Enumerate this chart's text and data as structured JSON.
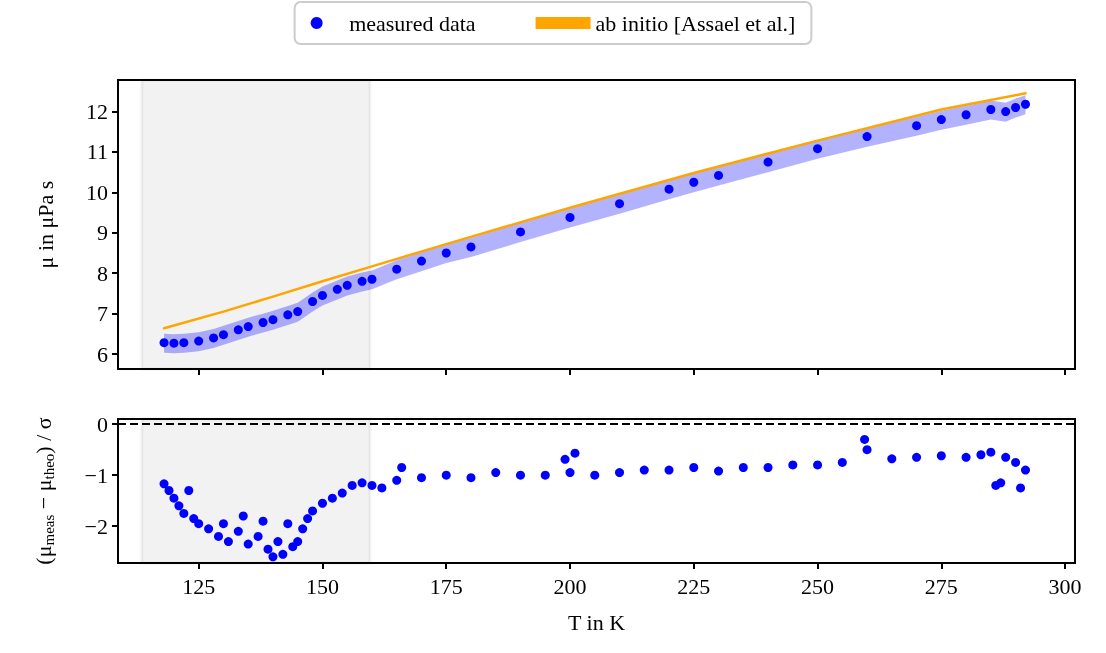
{
  "chart_data": [
    {
      "type": "scatter",
      "ylabel": "μ in μPa s",
      "xlim": [
        108.7,
        302
      ],
      "xticks": [
        125,
        150,
        175,
        200,
        225,
        250,
        275,
        300
      ],
      "ylim": [
        5.63,
        12.78
      ],
      "yticks": [
        6,
        7,
        8,
        9,
        10,
        11,
        12
      ],
      "tick_labels": "y",
      "legend": "top",
      "grid": false,
      "bands": [
        {
          "axis": "x",
          "from": 113.5,
          "to": 159.6,
          "color": "#000000"
        }
      ],
      "series": [
        {
          "name": "measured data",
          "marker": "circle",
          "color": "#0000ff",
          "x": [
            118,
            120,
            122,
            125,
            128,
            130,
            133,
            135,
            138,
            140,
            143,
            145,
            148,
            150,
            153,
            155,
            158,
            160,
            165,
            170,
            175,
            180,
            190,
            200,
            210,
            220,
            225,
            230,
            240,
            250,
            260,
            270,
            275,
            280,
            285,
            288,
            290,
            292
          ],
          "values": [
            6.28,
            6.27,
            6.28,
            6.32,
            6.4,
            6.48,
            6.6,
            6.68,
            6.78,
            6.85,
            6.97,
            7.05,
            7.3,
            7.45,
            7.6,
            7.7,
            7.8,
            7.85,
            8.1,
            8.3,
            8.5,
            8.65,
            9.02,
            9.38,
            9.72,
            10.08,
            10.25,
            10.42,
            10.75,
            11.08,
            11.38,
            11.65,
            11.8,
            11.92,
            12.05,
            12.0,
            12.1,
            12.18
          ],
          "lower": [
            6.03,
            6.02,
            6.03,
            6.07,
            6.15,
            6.23,
            6.35,
            6.43,
            6.53,
            6.6,
            6.72,
            6.8,
            7.05,
            7.2,
            7.35,
            7.45,
            7.55,
            7.6,
            7.85,
            8.05,
            8.25,
            8.4,
            8.77,
            9.13,
            9.47,
            9.83,
            10.0,
            10.17,
            10.5,
            10.83,
            11.13,
            11.4,
            11.55,
            11.67,
            11.8,
            11.75,
            11.85,
            11.93
          ],
          "upper": [
            6.5,
            6.49,
            6.5,
            6.54,
            6.62,
            6.7,
            6.82,
            6.9,
            7.0,
            7.07,
            7.19,
            7.27,
            7.52,
            7.67,
            7.82,
            7.92,
            8.02,
            8.07,
            8.32,
            8.52,
            8.72,
            8.87,
            9.24,
            9.6,
            9.94,
            10.3,
            10.47,
            10.64,
            10.97,
            11.3,
            11.6,
            11.87,
            12.02,
            12.14,
            12.27,
            12.22,
            12.32,
            12.4
          ]
        },
        {
          "name": "ab initio [Assael et al.]",
          "type": "line",
          "marker": "none",
          "color": "#ffa500",
          "x": [
            118,
            130,
            140,
            150,
            160,
            175,
            200,
            225,
            250,
            275,
            292
          ],
          "values": [
            6.64,
            7.05,
            7.42,
            7.8,
            8.17,
            8.72,
            9.62,
            10.48,
            11.28,
            12.05,
            12.45
          ]
        }
      ]
    },
    {
      "type": "scatter",
      "xlabel": "T in K",
      "ylabel": "(μ$_{meas}$ − μ$_{theo}$) / σ",
      "xlim": [
        108.7,
        302
      ],
      "xticks": [
        125,
        150,
        175,
        200,
        225,
        250,
        275,
        300
      ],
      "ylim": [
        -2.72,
        0.1
      ],
      "yticks": [
        -2,
        -1,
        0
      ],
      "marker": "circle",
      "grid": false,
      "ref_lines": [
        {
          "axis": "y",
          "value": 0,
          "line_style": "dashed",
          "color": "#000000"
        }
      ],
      "bands": [
        {
          "axis": "x",
          "from": 113.5,
          "to": 159.6,
          "color": "#000000"
        }
      ],
      "series": [
        {
          "color": "#0000ff",
          "x": [
            118,
            119,
            120,
            121,
            122,
            123,
            124,
            125,
            127,
            129,
            130,
            131,
            133,
            134,
            135,
            137,
            138,
            139,
            140,
            141,
            142,
            143,
            144,
            145,
            146,
            147,
            148,
            150,
            152,
            154,
            156,
            158,
            160,
            162,
            165,
            166,
            170,
            175,
            180,
            185,
            190,
            195,
            199,
            200,
            201,
            205,
            210,
            215,
            220,
            225,
            230,
            235,
            240,
            245,
            250,
            255,
            259.5,
            260,
            265,
            270,
            275,
            280,
            283,
            285,
            286,
            287,
            288,
            290,
            291,
            292
          ],
          "values": [
            -1.17,
            -1.3,
            -1.45,
            -1.6,
            -1.75,
            -1.3,
            -1.85,
            -1.95,
            -2.05,
            -2.2,
            -1.95,
            -2.3,
            -2.1,
            -1.8,
            -2.35,
            -2.2,
            -1.9,
            -2.45,
            -2.6,
            -2.3,
            -2.55,
            -1.95,
            -2.4,
            -2.3,
            -2.05,
            -1.85,
            -1.7,
            -1.55,
            -1.45,
            -1.35,
            -1.2,
            -1.15,
            -1.2,
            -1.25,
            -1.1,
            -0.85,
            -1.05,
            -1.0,
            -1.05,
            -0.95,
            -1.0,
            -1.0,
            -0.69,
            -0.95,
            -0.57,
            -1.0,
            -0.95,
            -0.9,
            -0.9,
            -0.85,
            -0.92,
            -0.85,
            -0.85,
            -0.8,
            -0.8,
            -0.75,
            -0.3,
            -0.5,
            -0.68,
            -0.65,
            -0.62,
            -0.65,
            -0.6,
            -0.55,
            -1.2,
            -1.15,
            -0.65,
            -0.75,
            -1.25,
            -0.9
          ]
        }
      ]
    }
  ]
}
